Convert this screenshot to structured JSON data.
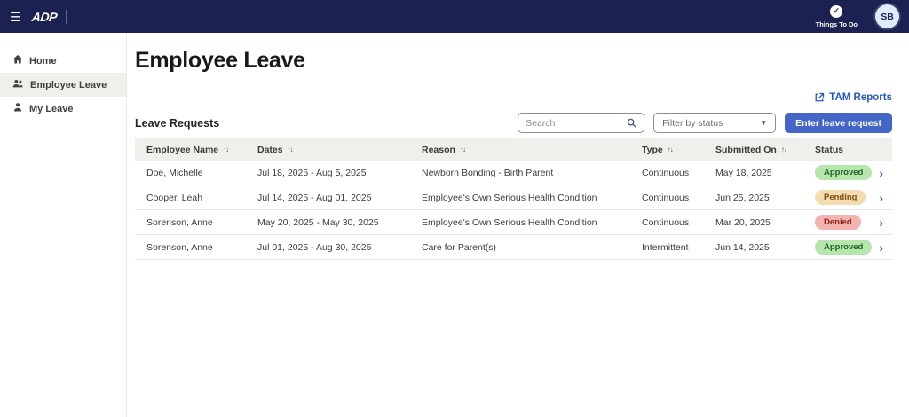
{
  "topbar": {
    "brand": "ADP",
    "hamburger_icon": "hamburger-icon",
    "things_to_do_label": "Things To Do",
    "avatar_initials": "SB"
  },
  "sidebar": {
    "items": [
      {
        "label": "Home",
        "icon": "home-icon",
        "active": false
      },
      {
        "label": "Employee Leave",
        "icon": "users-icon",
        "active": true
      },
      {
        "label": "My Leave",
        "icon": "user-icon",
        "active": false
      }
    ]
  },
  "main": {
    "page_title": "Employee Leave",
    "tam_reports_label": "TAM Reports",
    "section_title": "Leave Requests",
    "search_placeholder": "Search",
    "filter_placeholder": "Filter by status",
    "enter_button_label": "Enter leave request"
  },
  "table": {
    "columns": [
      {
        "label": "Employee Name",
        "sortable": true
      },
      {
        "label": "Dates",
        "sortable": true
      },
      {
        "label": "Reason",
        "sortable": true
      },
      {
        "label": "Type",
        "sortable": true
      },
      {
        "label": "Submitted On",
        "sortable": true
      },
      {
        "label": "Status",
        "sortable": false
      }
    ],
    "rows": [
      {
        "employee": "Doe, Michelle",
        "dates": "Jul 18, 2025 - Aug 5, 2025",
        "reason": "Newborn Bonding - Birth Parent",
        "type": "Continuous",
        "submitted": "May 18, 2025",
        "status": "Approved"
      },
      {
        "employee": "Cooper, Leah",
        "dates": "Jul 14, 2025 - Aug 01, 2025",
        "reason": "Employee's Own Serious Health Condition",
        "type": "Continuous",
        "submitted": "Jun 25, 2025",
        "status": "Pending"
      },
      {
        "employee": "Sorenson, Anne",
        "dates": "May 20, 2025 - May 30, 2025",
        "reason": "Employee's Own Serious Health Condition",
        "type": "Continuous",
        "submitted": "Mar 20, 2025",
        "status": "Denied"
      },
      {
        "employee": "Sorenson, Anne",
        "dates": "Jul 01, 2025 - Aug 30, 2025",
        "reason": "Care for Parent(s)",
        "type": "Intermittent",
        "submitted": "Jun 14, 2025",
        "status": "Approved"
      }
    ]
  },
  "colors": {
    "navbar_bg": "#1b2150",
    "accent_blue": "#4566c6",
    "link_blue": "#2457c5",
    "approved_bg": "#b5e7ad",
    "approved_text": "#215c26",
    "pending_bg": "#f2dcb0",
    "pending_text": "#7c4e12",
    "denied_bg": "#f3b3ae",
    "denied_text": "#8d221c"
  }
}
